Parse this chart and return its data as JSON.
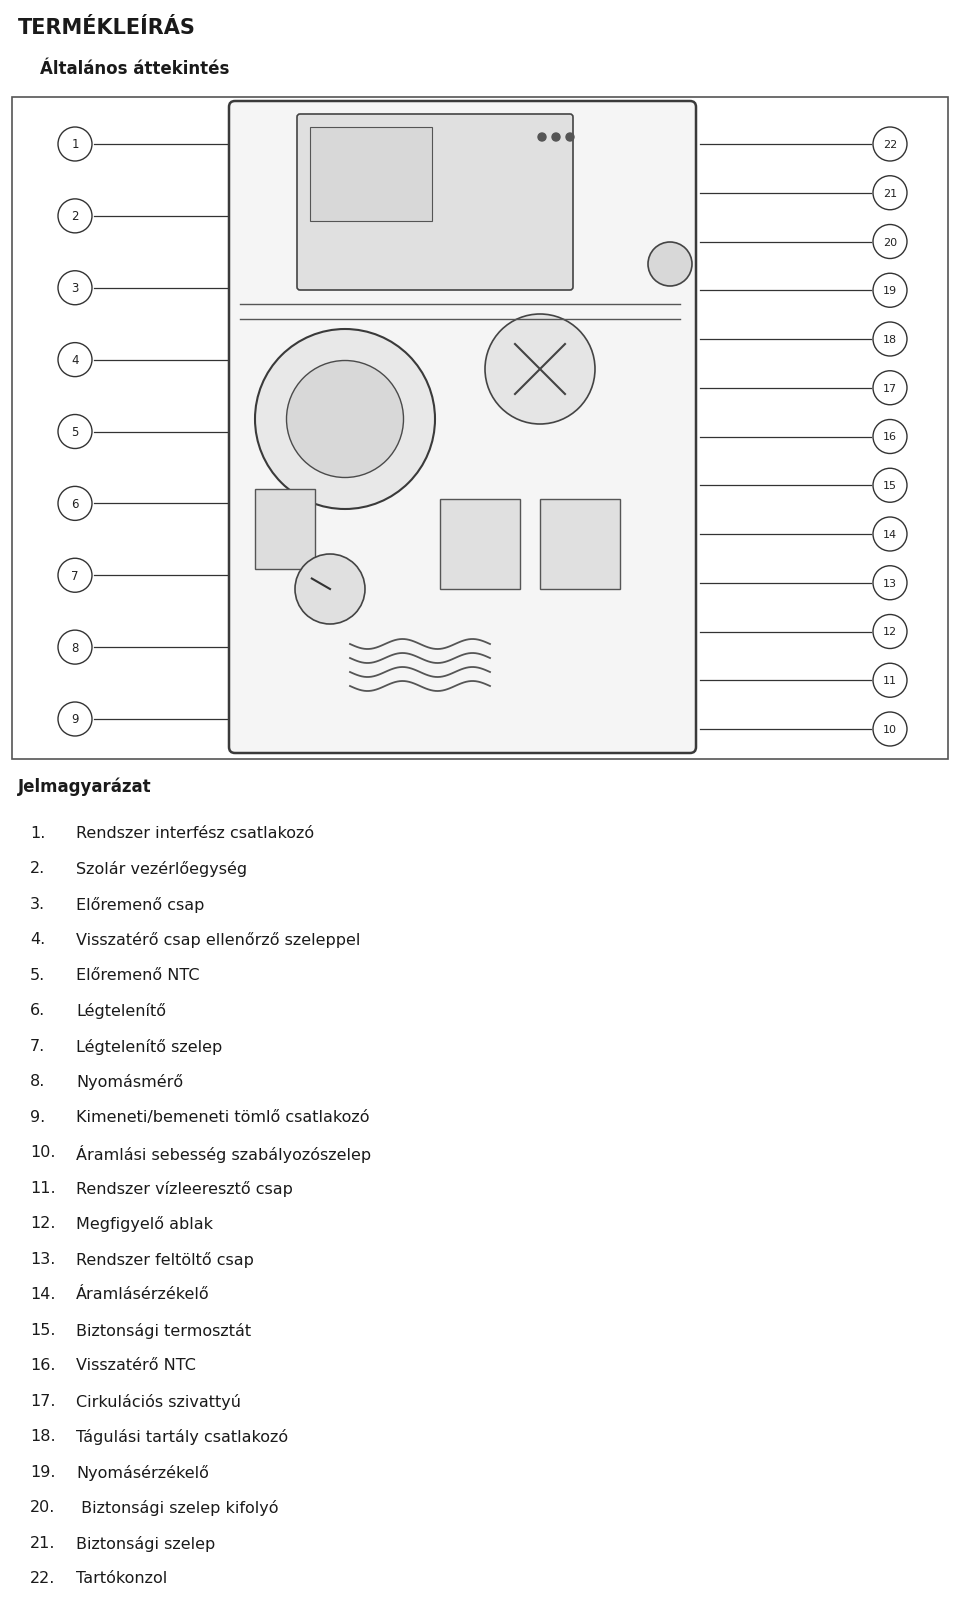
{
  "title": "TERMÉKLEÍRÁS",
  "subtitle": "Általános áttekintés",
  "legend_title": "Jelmagyarázat",
  "items": [
    [
      "1.",
      "Rendszer interfész csatlakozó"
    ],
    [
      "2.",
      "Szolár vezérlőegység"
    ],
    [
      "3.",
      "Előremenő csap"
    ],
    [
      "4.",
      "Visszatérő csap ellenőrző szeleppel"
    ],
    [
      "5.",
      "Előremenő NTC"
    ],
    [
      "6.",
      "Légtelenítő"
    ],
    [
      "7.",
      "Légtelenítő szelep"
    ],
    [
      "8.",
      "Nyomásmérő"
    ],
    [
      "9.",
      "Kimeneti/bemeneti tömlő csatlakozó"
    ],
    [
      "10.",
      "Áramlási sebesség szabályozószelep"
    ],
    [
      "11.",
      "Rendszer vízleeresztő csap"
    ],
    [
      "12.",
      "Megfigyelő ablak"
    ],
    [
      "13.",
      "Rendszer feltöltő csap"
    ],
    [
      "14.",
      "Áramlásérzékelő"
    ],
    [
      "15.",
      "Biztonsági termosztát"
    ],
    [
      "16.",
      "Visszatérő NTC"
    ],
    [
      "17.",
      "Cirkulációs szivattyú"
    ],
    [
      "18.",
      "Tágulási tartály csatlakozó"
    ],
    [
      "19.",
      "Nyomásérzékelő"
    ],
    [
      "20.",
      " Biztonsági szelep kifolyó"
    ],
    [
      "21.",
      "Biztonsági szelep"
    ],
    [
      "22.",
      "Tartókonzol"
    ]
  ],
  "bg_color": "#ffffff",
  "text_color": "#1a1a1a",
  "title_fontsize": 15,
  "subtitle_fontsize": 12,
  "legend_title_fontsize": 12,
  "item_fontsize": 11.5,
  "left_nums": [
    "1",
    "2",
    "3",
    "4",
    "5",
    "6",
    "7",
    "8",
    "9"
  ],
  "right_nums": [
    "22",
    "21",
    "20",
    "19",
    "18",
    "17",
    "16",
    "15",
    "14",
    "13",
    "12",
    "11",
    "10"
  ]
}
